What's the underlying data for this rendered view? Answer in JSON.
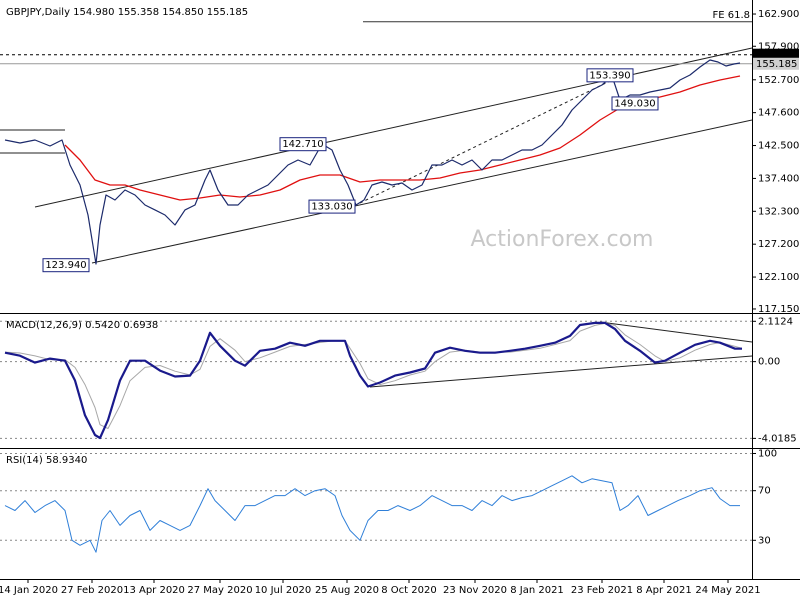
{
  "chart_data": [
    {
      "type": "line",
      "title": "GBPJPY,Daily  154.980 155.358 154.850 155.185",
      "xlim": [
        0,
        376
      ],
      "ylim": [
        116.68,
        164.61
      ],
      "grid": false,
      "yticks": [
        {
          "value": 162.9,
          "label": "162.900"
        },
        {
          "value": 157.9,
          "label": "157.900"
        },
        {
          "value": 152.7,
          "label": "152.700"
        },
        {
          "value": 147.6,
          "label": "147.600"
        },
        {
          "value": 142.5,
          "label": "142.500"
        },
        {
          "value": 137.4,
          "label": "137.400"
        },
        {
          "value": 132.3,
          "label": "132.300"
        },
        {
          "value": 127.2,
          "label": "127.200"
        },
        {
          "value": 122.1,
          "label": "122.100"
        },
        {
          "value": 117.15,
          "label": "117.150"
        }
      ],
      "series": [
        {
          "color": "#1c2a6b",
          "x": [
            2.5,
            10,
            17.5,
            25,
            31,
            35,
            40,
            44,
            48,
            50,
            53,
            57.5,
            62.5,
            67.5,
            72.5,
            77.5,
            82.5,
            87.5,
            92.5,
            97.5,
            102.5,
            105,
            109,
            114,
            119,
            124,
            129,
            134,
            139,
            144,
            149,
            155,
            161,
            166,
            170,
            174,
            178,
            182,
            186,
            191,
            196,
            201,
            206,
            211,
            216,
            221,
            226,
            231,
            236,
            241,
            246,
            251,
            256,
            261,
            266,
            271,
            276,
            281,
            286,
            291,
            296,
            301,
            306,
            310,
            315,
            320,
            325,
            330,
            335,
            340,
            345,
            350,
            355,
            359,
            363,
            367,
            370
          ],
          "values": [
            143.36,
            142.9,
            143.36,
            142.43,
            143.36,
            139.48,
            136.38,
            131.73,
            124.13,
            130.18,
            134.83,
            134.06,
            135.61,
            134.83,
            133.28,
            132.51,
            131.73,
            130.18,
            132.51,
            133.28,
            137.16,
            138.71,
            135.61,
            133.28,
            133.28,
            134.83,
            135.61,
            136.38,
            137.93,
            139.48,
            140.26,
            139.48,
            142.74,
            141.81,
            138.71,
            136.38,
            133.28,
            134.06,
            136.38,
            136.85,
            136.38,
            136.69,
            135.61,
            136.38,
            139.48,
            139.48,
            140.26,
            139.48,
            140.26,
            138.71,
            140.26,
            140.26,
            141.04,
            141.81,
            141.81,
            142.59,
            144.14,
            145.69,
            148.02,
            149.57,
            151.12,
            151.89,
            153.29,
            149.57,
            150.34,
            150.34,
            150.81,
            151.12,
            151.43,
            152.67,
            153.44,
            154.68,
            155.77,
            155.46,
            154.84,
            155.15,
            155.3
          ]
        },
        {
          "color": "#e01010",
          "x": [
            32.5,
            40,
            47.5,
            55,
            62.5,
            70,
            80,
            90,
            100,
            110,
            120,
            130,
            140,
            150,
            160,
            170,
            180,
            190,
            200,
            210,
            220,
            230,
            240,
            250,
            260,
            270,
            280,
            290,
            300,
            310,
            320,
            330,
            340,
            350,
            360,
            370
          ],
          "values": [
            142.59,
            140.26,
            137.16,
            136.38,
            136.38,
            135.61,
            134.83,
            134.06,
            134.37,
            134.83,
            134.52,
            134.83,
            135.61,
            137.16,
            137.93,
            137.93,
            136.85,
            137.16,
            137.16,
            137.16,
            137.47,
            138.24,
            138.71,
            139.48,
            140.26,
            141.04,
            142.12,
            144.14,
            146.46,
            148.33,
            149.57,
            150.03,
            150.81,
            151.89,
            152.67,
            153.29
          ]
        }
      ],
      "annotations": [
        {
          "value": 153.39,
          "label": "153.390"
        },
        {
          "value": 149.03,
          "label": "149.030"
        },
        {
          "value": 142.71,
          "label": "142.710"
        },
        {
          "value": 133.03,
          "label": "133.030"
        },
        {
          "value": 123.94,
          "label": "123.940"
        }
      ],
      "price_lines": [
        {
          "value": 156.59,
          "label": "156.590"
        },
        {
          "value": 155.185,
          "label": "155.185"
        }
      ],
      "fe_level": {
        "value": 161.7,
        "label": "FE 61.8"
      },
      "watermark": "ActionForex.com"
    },
    {
      "type": "line",
      "title": "MACD(12,26,9) 0.5420 0.6938",
      "xlim": [
        0,
        376
      ],
      "ylim": [
        -4.47,
        2.39
      ],
      "grid": true,
      "yticks": [
        2.1124,
        {
          "value": 0,
          "label": "0.00"
        },
        -4.0185
      ],
      "series": [
        {
          "color": "#1a1a8c",
          "x": [
            2.5,
            10,
            17.5,
            25,
            32.5,
            37.5,
            42.5,
            47.5,
            50,
            54,
            60,
            65,
            72.5,
            80,
            87.5,
            95,
            100,
            105,
            110,
            117.5,
            122.5,
            130,
            137.5,
            145,
            152.5,
            160,
            167.5,
            172.5,
            175,
            180,
            184,
            190,
            197.5,
            205,
            212.5,
            217.5,
            225,
            232.5,
            240,
            247.5,
            255,
            262.5,
            270,
            277.5,
            285,
            290,
            297.5,
            302.5,
            307.5,
            312.5,
            320,
            327.5,
            332.5,
            340,
            347.5,
            355,
            360,
            367.5,
            371
          ],
          "values": [
            0.47,
            0.31,
            -0.05,
            0.16,
            0.05,
            -0.99,
            -2.81,
            -3.84,
            -4.0,
            -3.06,
            -0.99,
            0.05,
            0.05,
            -0.47,
            -0.78,
            -0.73,
            0.05,
            1.51,
            0.83,
            0.05,
            -0.21,
            0.57,
            0.68,
            0.99,
            0.83,
            1.09,
            1.09,
            1.09,
            0.31,
            -0.73,
            -1.3,
            -1.09,
            -0.73,
            -0.57,
            -0.36,
            0.47,
            0.73,
            0.57,
            0.47,
            0.47,
            0.57,
            0.68,
            0.83,
            0.99,
            1.35,
            1.92,
            2.03,
            2.03,
            1.71,
            1.09,
            0.57,
            -0.05,
            0.05,
            0.47,
            0.88,
            1.09,
            0.99,
            0.68,
            0.68
          ]
        },
        {
          "color": "#a8a8a8",
          "x": [
            2.5,
            10,
            17.5,
            25,
            32.5,
            37.5,
            42.5,
            47.5,
            50,
            54,
            60,
            65,
            72.5,
            80,
            87.5,
            95,
            100,
            105,
            110,
            117.5,
            122.5,
            130,
            137.5,
            145,
            152.5,
            160,
            167.5,
            172.5,
            175,
            180,
            184,
            190,
            197.5,
            205,
            212.5,
            217.5,
            225,
            232.5,
            240,
            247.5,
            255,
            262.5,
            270,
            277.5,
            285,
            290,
            297.5,
            302.5,
            307.5,
            312.5,
            320,
            327.5,
            332.5,
            340,
            347.5,
            355,
            360,
            367.5,
            371
          ],
          "values": [
            0.5,
            0.45,
            0.3,
            0.1,
            0.1,
            -0.3,
            -1.2,
            -2.4,
            -3.3,
            -3.5,
            -2.3,
            -1.0,
            -0.3,
            -0.2,
            -0.5,
            -0.7,
            -0.4,
            0.8,
            1.2,
            0.6,
            0.0,
            0.2,
            0.5,
            0.8,
            0.9,
            1.0,
            1.1,
            1.1,
            0.7,
            -0.1,
            -0.9,
            -1.2,
            -1.0,
            -0.7,
            -0.5,
            0.0,
            0.5,
            0.6,
            0.5,
            0.5,
            0.5,
            0.6,
            0.7,
            0.9,
            1.1,
            1.6,
            1.9,
            2.0,
            1.9,
            1.4,
            0.9,
            0.3,
            0.0,
            0.2,
            0.6,
            0.9,
            1.0,
            0.8,
            0.7
          ]
        }
      ]
    },
    {
      "type": "line",
      "title": "RSI(14) 58.9340",
      "xlim": [
        0,
        376
      ],
      "ylim": [
        -0.4,
        102
      ],
      "grid": true,
      "yticks": [
        100,
        70,
        30
      ],
      "xticks": [
        {
          "value": 14,
          "label": "14 Jan 2020"
        },
        {
          "value": 46,
          "label": "27 Feb 2020"
        },
        {
          "value": 77,
          "label": "13 Apr 2020"
        },
        {
          "value": 110,
          "label": "27 May 2020"
        },
        {
          "value": 141.5,
          "label": "10 Jul 2020"
        },
        {
          "value": 173.5,
          "label": "25 Aug 2020"
        },
        {
          "value": 204.5,
          "label": "8 Oct 2020"
        },
        {
          "value": 237.5,
          "label": "23 Nov 2020"
        },
        {
          "value": 268.5,
          "label": "8 Jan 2021"
        },
        {
          "value": 301,
          "label": "23 Feb 2021"
        },
        {
          "value": 332,
          "label": "8 Apr 2021"
        },
        {
          "value": 364,
          "label": "24 May 2021"
        }
      ],
      "series": [
        {
          "color": "#2f7fd8",
          "x": [
            2.5,
            7.5,
            12.5,
            17.5,
            22.5,
            27.5,
            32.5,
            36,
            40,
            45,
            48,
            51,
            55,
            60,
            65,
            70,
            75,
            80,
            85,
            90,
            95,
            100,
            104,
            107.5,
            112.5,
            117.5,
            122.5,
            127.5,
            132.5,
            137.5,
            142.5,
            147.5,
            152.5,
            157.5,
            162.5,
            167.5,
            171,
            175,
            180,
            184,
            189,
            194,
            199,
            205,
            210,
            216,
            221,
            226,
            231,
            236,
            241,
            246,
            251,
            256,
            261,
            266,
            271,
            276,
            281,
            286,
            291,
            296,
            301,
            306,
            310,
            314,
            319,
            324,
            329,
            334,
            339,
            345,
            350,
            356,
            360,
            365,
            370
          ],
          "values": [
            58,
            54,
            62,
            52.4,
            58,
            62,
            54,
            30,
            26,
            30,
            20.4,
            46,
            54,
            42,
            50,
            54,
            38,
            46,
            42,
            38,
            42,
            58,
            71.6,
            62,
            54,
            46,
            58,
            58,
            62,
            66,
            66,
            71.6,
            66,
            70,
            71.6,
            66,
            50,
            38,
            30,
            46,
            54,
            54,
            58,
            54,
            58,
            66,
            62,
            58,
            58,
            54,
            62,
            58,
            66,
            62,
            64.4,
            66,
            70,
            74,
            78,
            82,
            76.4,
            79.6,
            78,
            76.4,
            54,
            58,
            66,
            50,
            54,
            58,
            62,
            66,
            70,
            72.4,
            63.6,
            58,
            58
          ]
        }
      ]
    }
  ]
}
